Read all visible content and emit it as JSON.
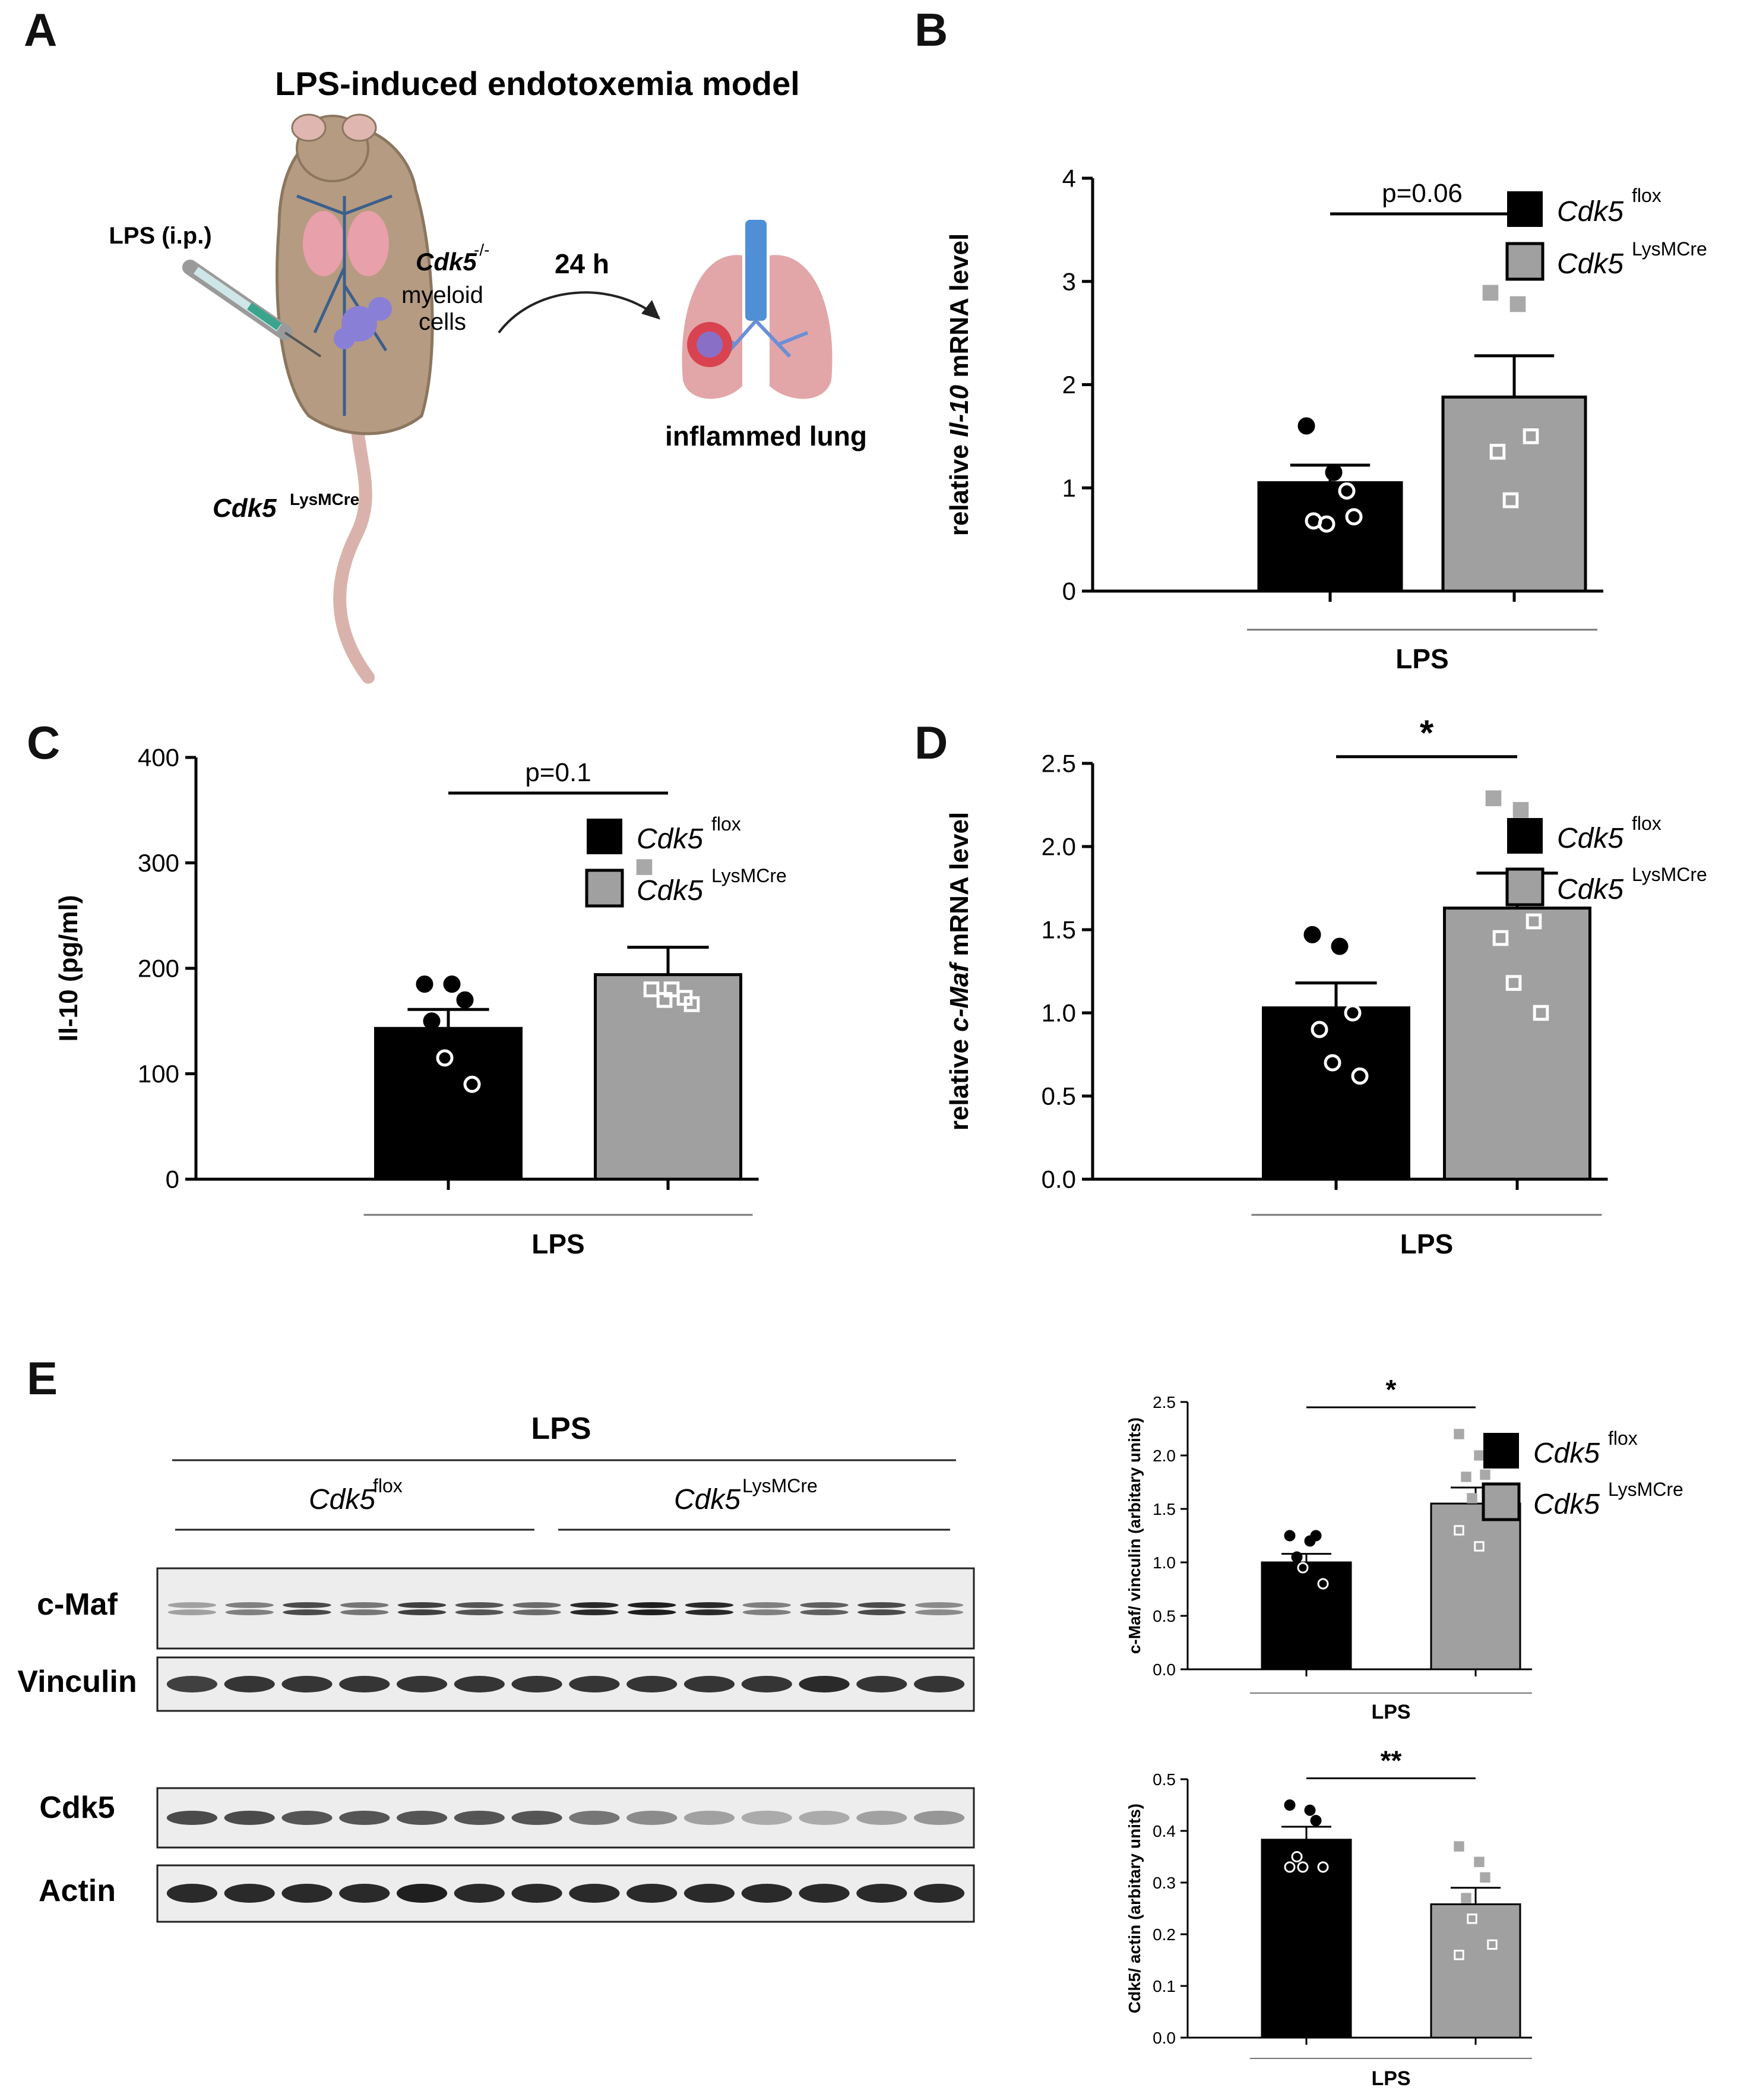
{
  "colors": {
    "flox_bar": "#000000",
    "lysm_bar": "#a0a0a0",
    "lysm_points": "#a8a8a8",
    "axis": "#000000"
  },
  "panel_a": {
    "letter": "A",
    "title": "LPS-induced endotoxemia model",
    "lps_label": "LPS (i.p.)",
    "cdk5_ko_gene": "Cdk5",
    "cdk5_ko_sup": "-/-",
    "myeloid": "myeloid",
    "cells": "cells",
    "time": "24 h",
    "lung_label": "inflammed lung",
    "mouse_gene": "Cdk5",
    "mouse_sup": "LysMCre"
  },
  "legend": {
    "gene": "Cdk5",
    "flox_sup": "flox",
    "lysm_sup": "LysMCre"
  },
  "panel_b": {
    "letter": "B"
  },
  "panel_c": {
    "letter": "C"
  },
  "panel_d": {
    "letter": "D"
  },
  "panel_e": {
    "letter": "E",
    "header": "LPS",
    "group1_gene": "Cdk5",
    "group1_sup": "flox",
    "group2_gene": "Cdk5",
    "group2_sup": "LysMCre",
    "blot_labels": [
      "c-Maf",
      "Vinculin",
      "Cdk5",
      "Actin"
    ]
  },
  "chart_data": [
    {
      "id": "B",
      "type": "bar",
      "ylabel_parts": [
        "relative ",
        "Il-10",
        " mRNA level"
      ],
      "xlabel": "LPS",
      "ylim": [
        0,
        4
      ],
      "yticks": [
        "0",
        "1",
        "2",
        "3",
        "4"
      ],
      "annotation": "p=0.06",
      "series": [
        {
          "name": "Cdk5 flox",
          "mean": 1.05,
          "sem": 0.17,
          "points": [
            1.6,
            1.15,
            0.97,
            0.68,
            0.65,
            0.72
          ]
        },
        {
          "name": "Cdk5 LysMCre",
          "mean": 1.88,
          "sem": 0.4,
          "points": [
            2.89,
            2.78,
            1.5,
            1.35,
            0.88
          ]
        }
      ]
    },
    {
      "id": "C",
      "type": "bar",
      "ylabel_parts": [
        "Il-10 (pg/ml)"
      ],
      "xlabel": "LPS",
      "ylim": [
        0,
        400
      ],
      "yticks": [
        "0",
        "100",
        "200",
        "300",
        "400"
      ],
      "annotation": "p=0.1",
      "series": [
        {
          "name": "Cdk5 flox",
          "mean": 143,
          "sem": 18,
          "points": [
            185,
            185,
            170,
            150,
            115,
            90
          ]
        },
        {
          "name": "Cdk5 LysMCre",
          "mean": 194,
          "sem": 26,
          "points": [
            296,
            180,
            172,
            180,
            170,
            166
          ]
        }
      ]
    },
    {
      "id": "D",
      "type": "bar",
      "ylabel_parts": [
        "relative ",
        "c-Maf",
        " mRNA level"
      ],
      "xlabel": "LPS",
      "ylim": [
        0,
        2.5
      ],
      "yticks": [
        "0.0",
        "0.5",
        "1.0",
        "1.5",
        "2.0",
        "2.5"
      ],
      "annotation": "*",
      "series": [
        {
          "name": "Cdk5 flox",
          "mean": 1.03,
          "sem": 0.15,
          "points": [
            1.47,
            1.4,
            1.0,
            0.9,
            0.7,
            0.62
          ]
        },
        {
          "name": "Cdk5 LysMCre",
          "mean": 1.63,
          "sem": 0.21,
          "points": [
            2.29,
            2.22,
            1.55,
            1.45,
            1.18,
            1.0
          ]
        }
      ]
    },
    {
      "id": "E1",
      "type": "bar",
      "ylabel_parts": [
        "c-Maf/ vinculin (arbitary units)"
      ],
      "xlabel": "LPS",
      "ylim": [
        0,
        2.5
      ],
      "yticks": [
        "0.0",
        "0.5",
        "1.0",
        "1.5",
        "2.0",
        "2.5"
      ],
      "annotation": "*",
      "series": [
        {
          "name": "Cdk5 flox",
          "mean": 1.0,
          "sem": 0.08,
          "points": [
            1.25,
            1.2,
            1.25,
            1.05,
            0.95,
            0.8
          ]
        },
        {
          "name": "Cdk5 LysMCre",
          "mean": 1.55,
          "sem": 0.15,
          "points": [
            2.2,
            2.0,
            1.82,
            1.8,
            1.6,
            1.45,
            1.3,
            1.15
          ]
        }
      ]
    },
    {
      "id": "E2",
      "type": "bar",
      "ylabel_parts": [
        "Cdk5/ actin (arbitary units)"
      ],
      "xlabel": "LPS",
      "ylim": [
        0,
        0.5
      ],
      "yticks": [
        "0.0",
        "0.1",
        "0.2",
        "0.3",
        "0.4",
        "0.5"
      ],
      "annotation": "**",
      "series": [
        {
          "name": "Cdk5 flox",
          "mean": 0.383,
          "sem": 0.025,
          "points": [
            0.45,
            0.44,
            0.42,
            0.35,
            0.33,
            0.33,
            0.33
          ]
        },
        {
          "name": "Cdk5 LysMCre",
          "mean": 0.258,
          "sem": 0.032,
          "points": [
            0.37,
            0.34,
            0.31,
            0.27,
            0.23,
            0.18,
            0.16
          ]
        }
      ]
    }
  ]
}
